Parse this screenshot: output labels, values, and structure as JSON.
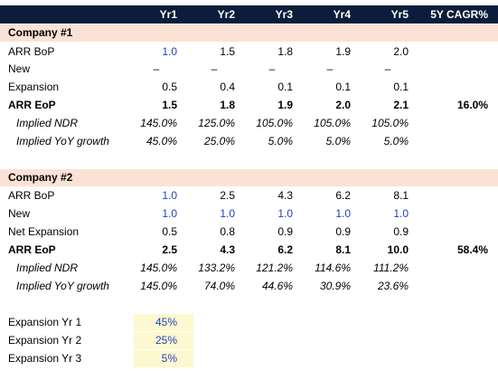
{
  "header": {
    "col1": "Yr1",
    "col2": "Yr2",
    "col3": "Yr3",
    "col4": "Yr4",
    "col5": "Yr5",
    "col6": "5Y CAGR%"
  },
  "company1": {
    "title": "Company #1",
    "rows": [
      {
        "label": "ARR BoP",
        "values": [
          "1.0",
          "1.5",
          "1.8",
          "1.9",
          "2.0"
        ],
        "cagr": ""
      },
      {
        "label": "New",
        "values": [
          "–",
          "–",
          "–",
          "–",
          "–"
        ],
        "cagr": ""
      },
      {
        "label": "Expansion",
        "values": [
          "0.5",
          "0.4",
          "0.1",
          "0.1",
          "0.1"
        ],
        "cagr": ""
      },
      {
        "label": "ARR EoP",
        "values": [
          "1.5",
          "1.8",
          "1.9",
          "2.0",
          "2.1"
        ],
        "cagr": "16.0%"
      },
      {
        "label": "Implied NDR",
        "values": [
          "145.0%",
          "125.0%",
          "105.0%",
          "105.0%",
          "105.0%"
        ],
        "cagr": ""
      },
      {
        "label": "Implied YoY growth",
        "values": [
          "45.0%",
          "25.0%",
          "5.0%",
          "5.0%",
          "5.0%"
        ],
        "cagr": ""
      }
    ]
  },
  "company2": {
    "title": "Company #2",
    "rows": [
      {
        "label": "ARR BoP",
        "values": [
          "1.0",
          "2.5",
          "4.3",
          "6.2",
          "8.1"
        ],
        "cagr": ""
      },
      {
        "label": "New",
        "values": [
          "1.0",
          "1.0",
          "1.0",
          "1.0",
          "1.0"
        ],
        "cagr": ""
      },
      {
        "label": "Net Expansion",
        "values": [
          "0.5",
          "0.8",
          "0.9",
          "0.9",
          "0.9"
        ],
        "cagr": ""
      },
      {
        "label": "ARR EoP",
        "values": [
          "2.5",
          "4.3",
          "6.2",
          "8.1",
          "10.0"
        ],
        "cagr": "58.4%"
      },
      {
        "label": "Implied NDR",
        "values": [
          "145.0%",
          "133.2%",
          "121.2%",
          "114.6%",
          "111.2%"
        ],
        "cagr": ""
      },
      {
        "label": "Implied YoY growth",
        "values": [
          "145.0%",
          "74.0%",
          "44.6%",
          "30.9%",
          "23.6%"
        ],
        "cagr": ""
      }
    ]
  },
  "assumptions": [
    {
      "label": "Expansion Yr 1",
      "value": "45%"
    },
    {
      "label": "Expansion Yr 2",
      "value": "25%"
    },
    {
      "label": "Expansion Yr 3",
      "value": "5%"
    }
  ],
  "colors": {
    "header_bg": "#0b1d3a",
    "section_bg": "#fbe2d5",
    "input_blue": "#1f3fbf",
    "assumption_bg": "#fdf8cf"
  }
}
